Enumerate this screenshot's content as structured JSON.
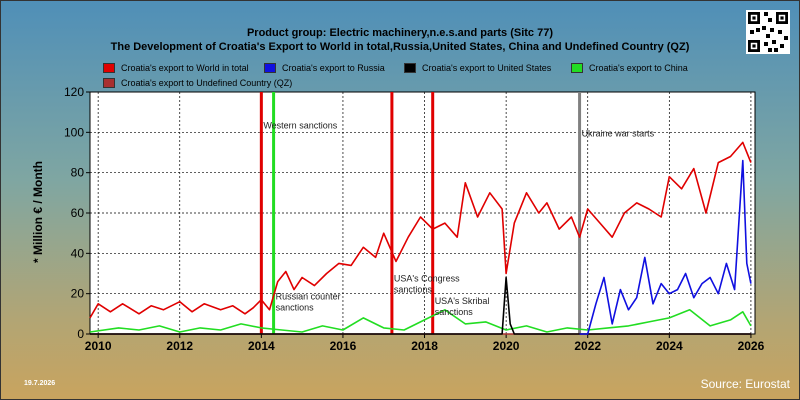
{
  "chart_data": {
    "type": "line",
    "title": "Product group: Electric machinery,n.e.s.and parts (Sitc 77)",
    "subtitle": "The Development of Croatia's Export to World in total,Russia,United States, China and Undefined Country (QZ)",
    "xlabel": "",
    "ylabel": "* Million € / Month",
    "xlim": [
      2009.8,
      2026.1
    ],
    "ylim": [
      0,
      120
    ],
    "x_ticks": [
      "2010",
      "2012",
      "2014",
      "2016",
      "2018",
      "2020",
      "2022",
      "2024",
      "2026"
    ],
    "y_ticks": [
      "0",
      "20",
      "40",
      "60",
      "80",
      "100",
      "120"
    ],
    "grid": true,
    "legend_position": "top",
    "series": [
      {
        "name": "Croatia's export to World in total",
        "color": "#e00000",
        "x": [
          2009.8,
          2010.0,
          2010.3,
          2010.6,
          2011.0,
          2011.3,
          2011.6,
          2012.0,
          2012.3,
          2012.6,
          2013.0,
          2013.3,
          2013.6,
          2013.8,
          2014.0,
          2014.2,
          2014.4,
          2014.6,
          2014.8,
          2015.0,
          2015.3,
          2015.6,
          2015.9,
          2016.2,
          2016.5,
          2016.8,
          2017.0,
          2017.3,
          2017.6,
          2017.9,
          2018.2,
          2018.5,
          2018.8,
          2019.0,
          2019.3,
          2019.6,
          2019.9,
          2020.0,
          2020.2,
          2020.5,
          2020.8,
          2021.0,
          2021.3,
          2021.6,
          2021.8,
          2022.0,
          2022.3,
          2022.6,
          2022.9,
          2023.2,
          2023.5,
          2023.8,
          2024.0,
          2024.3,
          2024.6,
          2024.9,
          2025.2,
          2025.5,
          2025.8,
          2026.0
        ],
        "values": [
          8,
          15,
          11,
          15,
          10,
          14,
          12,
          16,
          11,
          15,
          12,
          14,
          10,
          13,
          17,
          12,
          26,
          31,
          22,
          28,
          24,
          30,
          35,
          34,
          43,
          38,
          50,
          36,
          48,
          58,
          52,
          55,
          48,
          75,
          58,
          70,
          62,
          30,
          55,
          70,
          60,
          65,
          52,
          58,
          48,
          62,
          55,
          48,
          60,
          65,
          62,
          58,
          78,
          72,
          82,
          60,
          85,
          88,
          95,
          85
        ]
      },
      {
        "name": "Croatia's export to Russia",
        "color": "#1010e0",
        "x": [
          2021.8,
          2022.0,
          2022.2,
          2022.4,
          2022.6,
          2022.8,
          2023.0,
          2023.2,
          2023.4,
          2023.6,
          2023.8,
          2024.0,
          2024.2,
          2024.4,
          2024.6,
          2024.8,
          2025.0,
          2025.2,
          2025.4,
          2025.6,
          2025.8,
          2025.9,
          2026.0
        ],
        "values": [
          0,
          0,
          15,
          28,
          5,
          22,
          12,
          18,
          38,
          15,
          25,
          20,
          22,
          30,
          18,
          25,
          28,
          20,
          35,
          22,
          86,
          35,
          25
        ]
      },
      {
        "name": "Croatia's export to United States",
        "color": "#000000",
        "x": [
          2009.8,
          2019.9,
          2020.0,
          2020.1,
          2020.2,
          2026.0
        ],
        "values": [
          0,
          0,
          28,
          5,
          0,
          0
        ]
      },
      {
        "name": "Croatia's export to China",
        "color": "#22dd22",
        "x": [
          2009.8,
          2010.5,
          2011.0,
          2011.5,
          2012.0,
          2012.5,
          2013.0,
          2013.5,
          2014.0,
          2014.5,
          2015.0,
          2015.5,
          2016.0,
          2016.5,
          2017.0,
          2017.5,
          2018.0,
          2018.5,
          2019.0,
          2019.5,
          2020.0,
          2020.5,
          2021.0,
          2021.5,
          2022.0,
          2022.5,
          2023.0,
          2023.5,
          2024.0,
          2024.5,
          2025.0,
          2025.5,
          2025.8,
          2026.0
        ],
        "values": [
          1,
          3,
          2,
          4,
          1,
          3,
          2,
          5,
          3,
          2,
          1,
          4,
          2,
          8,
          3,
          2,
          7,
          12,
          5,
          6,
          2,
          4,
          1,
          3,
          2,
          3,
          4,
          6,
          8,
          12,
          4,
          7,
          11,
          4
        ]
      },
      {
        "name": "Croatia's export to Undefined Country (QZ)",
        "color": "#a83030",
        "x": [
          2009.8,
          2026.0
        ],
        "values": [
          0,
          0
        ]
      }
    ],
    "annotations": [
      {
        "x": 2014.0,
        "label": "Western sanctions",
        "line_color": "#e00000",
        "label_y": 102
      },
      {
        "x": 2014.3,
        "label": "",
        "line_color": "#22dd22"
      },
      {
        "x": 2014.3,
        "label": "Russian counter sanctions",
        "line_color": "",
        "label_y": 17
      },
      {
        "x": 2017.2,
        "label": "USA's Congress sanctions",
        "line_color": "#e00000",
        "label_y": 26
      },
      {
        "x": 2018.2,
        "label": "USA's Skribal sanctions",
        "line_color": "#e00000",
        "label_y": 15
      },
      {
        "x": 2021.8,
        "label": "Ukraine war starts",
        "line_color": "#808080",
        "label_y": 98
      }
    ]
  },
  "footer": {
    "date": "19.7.2026",
    "source": "Source: Eurostat"
  },
  "icons": {
    "qr": "qr-code-icon"
  }
}
